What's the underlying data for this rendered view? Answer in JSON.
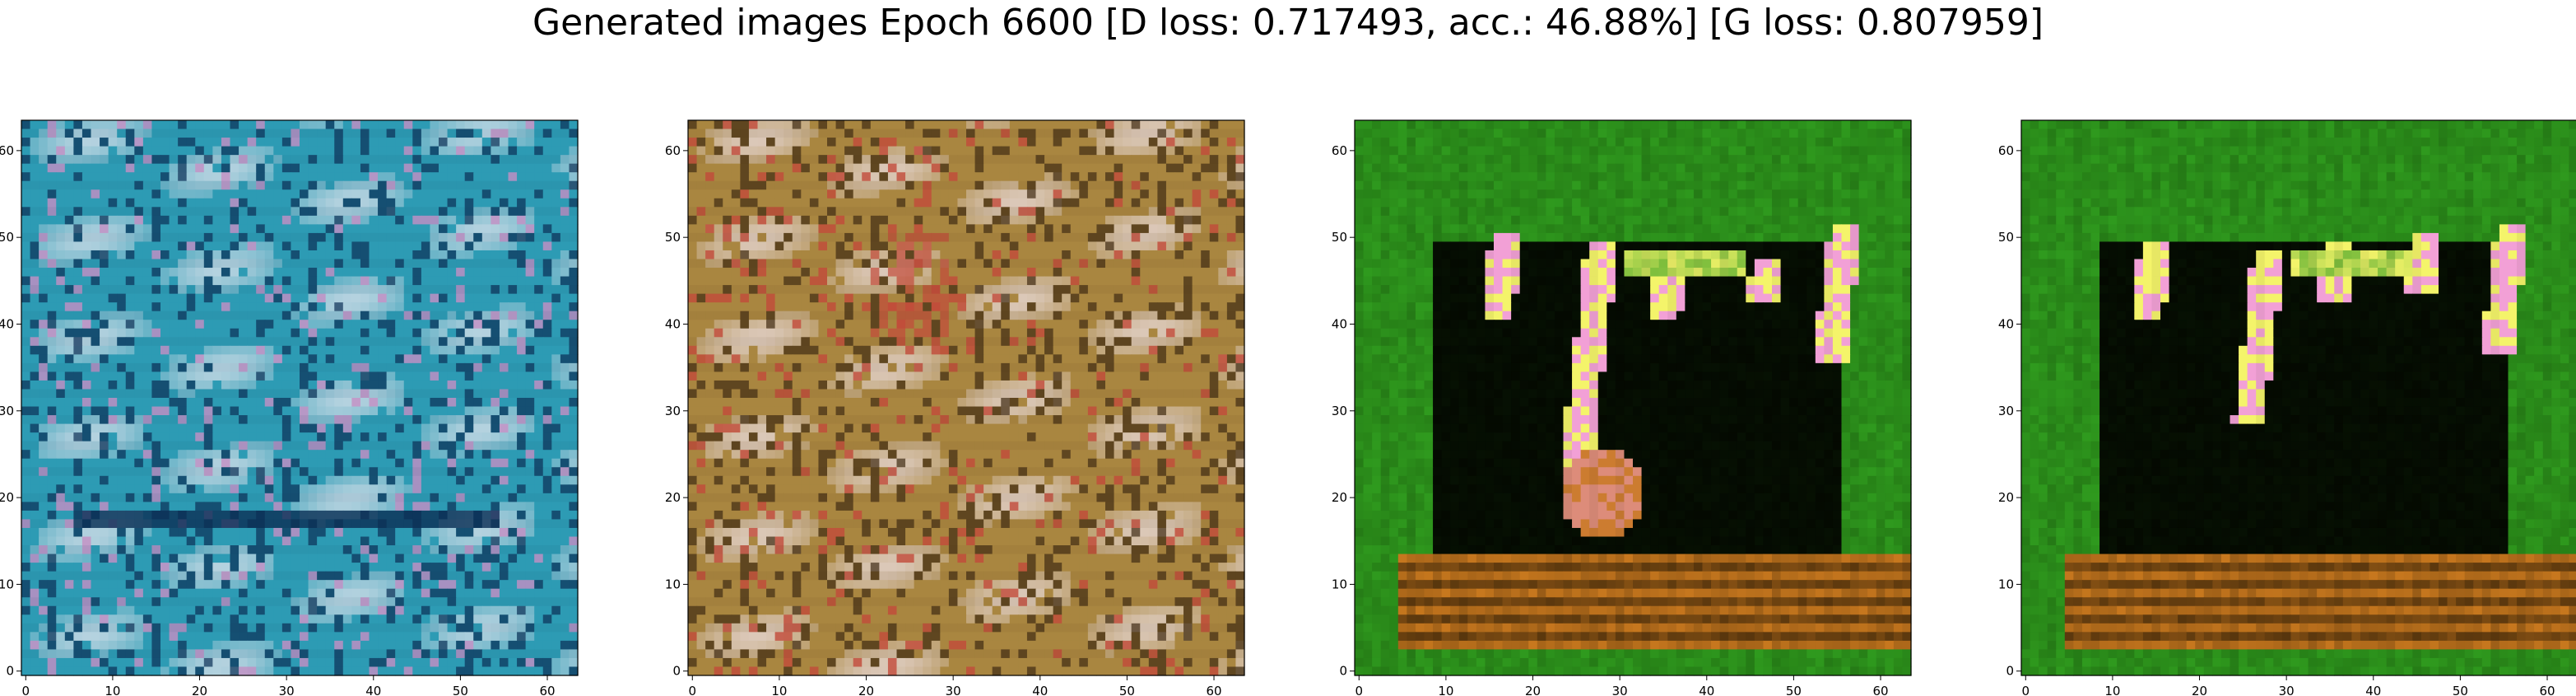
{
  "figure": {
    "title": "Generated images Epoch 6600 [D loss: 0.717493, acc.: 46.88%] [G loss: 0.807959]"
  },
  "chart_data": [
    {
      "type": "heatmap",
      "xlim": [
        -0.5,
        63.5
      ],
      "ylim": [
        63.5,
        -0.5
      ],
      "xticks": [
        0,
        10,
        20,
        30,
        40,
        50,
        60
      ],
      "yticks": [
        0,
        10,
        20,
        30,
        40,
        50,
        60
      ],
      "grid": false,
      "image_palette": {
        "base": "#2d9bb4",
        "light": "#d7e0ea",
        "dark": "#0b2f55",
        "accent": "#c58fc4"
      }
    },
    {
      "type": "heatmap",
      "xlim": [
        -0.5,
        63.5
      ],
      "ylim": [
        63.5,
        -0.5
      ],
      "xticks": [
        0,
        10,
        20,
        30,
        40,
        50,
        60
      ],
      "yticks": [
        0,
        10,
        20,
        30,
        40,
        50,
        60
      ],
      "grid": false,
      "image_palette": {
        "base": "#a98640",
        "light": "#e8d9d7",
        "dark": "#3f2a12",
        "accent": "#c24a3a"
      }
    },
    {
      "type": "heatmap",
      "xlim": [
        -0.5,
        63.5
      ],
      "ylim": [
        63.5,
        -0.5
      ],
      "xticks": [
        0,
        10,
        20,
        30,
        40,
        50,
        60
      ],
      "yticks": [
        0,
        10,
        20,
        30,
        40,
        50,
        60
      ],
      "grid": false,
      "image_palette": {
        "base": "#2f9a1e",
        "dark": "#020300",
        "accent": "#f2a0d6",
        "warm": "#c8781e",
        "bright": "#f4f46a"
      }
    },
    {
      "type": "heatmap",
      "xlim": [
        -0.5,
        63.5
      ],
      "ylim": [
        63.5,
        -0.5
      ],
      "xticks": [
        0,
        10,
        20,
        30,
        40,
        50,
        60
      ],
      "yticks": [
        0,
        10,
        20,
        30,
        40,
        50,
        60
      ],
      "grid": false,
      "image_palette": {
        "base": "#2f9a1e",
        "dark": "#020300",
        "accent": "#f2a0d6",
        "warm": "#c8781e",
        "bright": "#f4f46a"
      }
    }
  ]
}
